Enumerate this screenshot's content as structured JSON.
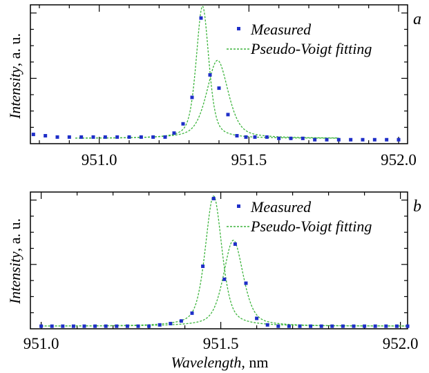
{
  "figure": {
    "x_label_main": "Wavelength",
    "x_label_unit": ", nm",
    "y_label_main": "Intensity",
    "y_label_unit": ", a. u."
  },
  "chart_data": [
    {
      "type": "line",
      "panel_label": "a",
      "xlim": [
        950.77,
        952.03
      ],
      "ylim": [
        0,
        1.05
      ],
      "x_ticks": [
        951.0,
        951.5,
        952.0
      ],
      "x_tick_labels": [
        "951.0",
        "951.5",
        "952.0"
      ],
      "y_axis_tick_labels": false,
      "grid": false,
      "legend_position": "top-right",
      "legend": [
        "Measured",
        "Pseudo-Voigt fitting"
      ],
      "series": [
        {
          "name": "Measured",
          "kind": "scatter",
          "color": "#1f2fc8",
          "x": [
            950.78,
            950.82,
            950.86,
            950.9,
            950.94,
            950.98,
            951.02,
            951.06,
            951.1,
            951.14,
            951.18,
            951.22,
            951.25,
            951.28,
            951.31,
            951.34,
            951.37,
            951.4,
            951.43,
            951.46,
            951.49,
            951.52,
            951.56,
            951.6,
            951.64,
            951.68,
            951.72,
            951.76,
            951.8,
            951.84,
            951.88,
            951.92,
            951.96,
            952.0
          ],
          "y": [
            0.07,
            0.06,
            0.05,
            0.05,
            0.05,
            0.05,
            0.05,
            0.05,
            0.05,
            0.05,
            0.05,
            0.05,
            0.08,
            0.15,
            0.35,
            0.95,
            0.52,
            0.42,
            0.22,
            0.06,
            0.05,
            0.05,
            0.05,
            0.04,
            0.04,
            0.04,
            0.03,
            0.03,
            0.03,
            0.03,
            0.03,
            0.03,
            0.03,
            0.03
          ]
        },
        {
          "name": "Pseudo-Voigt fitting",
          "kind": "line",
          "color": "#3cb43c",
          "fit_range": [
            950.92,
            951.8
          ],
          "components": [
            {
              "center": 951.345,
              "amplitude": 1.0,
              "fwhm": 0.05,
              "eta": 0.5,
              "baseline": 0.04
            },
            {
              "center": 951.395,
              "amplitude": 0.59,
              "fwhm": 0.085,
              "eta": 0.5,
              "baseline": 0.04
            }
          ]
        }
      ]
    },
    {
      "type": "line",
      "panel_label": "b",
      "xlim": [
        950.97,
        952.02
      ],
      "ylim": [
        0,
        1.05
      ],
      "x_ticks": [
        951.0,
        951.5,
        952.0
      ],
      "x_tick_labels": [
        "951.0",
        "951.5",
        "952.0"
      ],
      "y_axis_tick_labels": false,
      "grid": false,
      "legend_position": "top-right",
      "legend": [
        "Measured",
        "Pseudo-Voigt fitting"
      ],
      "series": [
        {
          "name": "Measured",
          "kind": "scatter",
          "color": "#1f2fc8",
          "x": [
            951.0,
            951.03,
            951.06,
            951.09,
            951.12,
            951.15,
            951.18,
            951.21,
            951.24,
            951.27,
            951.3,
            951.33,
            951.36,
            951.39,
            951.42,
            951.45,
            951.48,
            951.51,
            951.54,
            951.57,
            951.6,
            951.63,
            951.66,
            951.69,
            951.72,
            951.75,
            951.78,
            951.81,
            951.84,
            951.87,
            951.9,
            951.93,
            951.96,
            951.99,
            952.02
          ],
          "y": [
            0.02,
            0.02,
            0.02,
            0.02,
            0.02,
            0.02,
            0.02,
            0.02,
            0.02,
            0.02,
            0.02,
            0.03,
            0.04,
            0.06,
            0.12,
            0.48,
            1.0,
            0.38,
            0.65,
            0.35,
            0.08,
            0.03,
            0.02,
            0.02,
            0.02,
            0.02,
            0.02,
            0.02,
            0.02,
            0.02,
            0.02,
            0.02,
            0.02,
            0.02,
            0.02
          ]
        },
        {
          "name": "Pseudo-Voigt fitting",
          "kind": "line",
          "color": "#3cb43c",
          "fit_range": [
            951.0,
            952.02
          ],
          "components": [
            {
              "center": 951.48,
              "amplitude": 1.0,
              "fwhm": 0.055,
              "eta": 0.5,
              "baseline": 0.02
            },
            {
              "center": 951.535,
              "amplitude": 0.66,
              "fwhm": 0.065,
              "eta": 0.5,
              "baseline": 0.02
            }
          ]
        }
      ]
    }
  ]
}
